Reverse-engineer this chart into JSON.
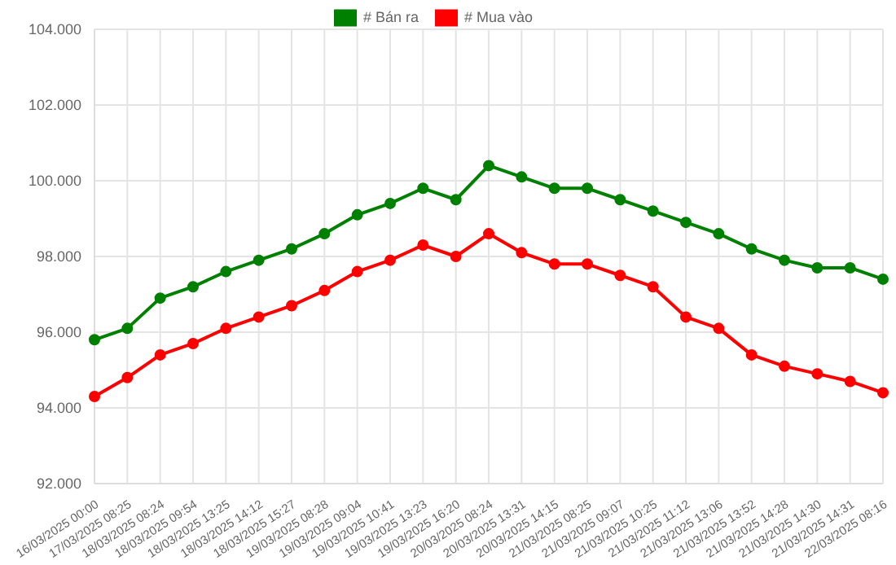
{
  "chart_data": {
    "type": "line",
    "categories": [
      "16/03/2025 00:00",
      "17/03/2025 08:25",
      "18/03/2025 08:24",
      "18/03/2025 09:54",
      "18/03/2025 13:25",
      "18/03/2025 14:12",
      "18/03/2025 15:27",
      "19/03/2025 08:28",
      "19/03/2025 09:04",
      "19/03/2025 10:41",
      "19/03/2025 13:23",
      "19/03/2025 16:20",
      "20/03/2025 08:24",
      "20/03/2025 13:31",
      "20/03/2025 14:15",
      "21/03/2025 08:25",
      "21/03/2025 09:07",
      "21/03/2025 10:25",
      "21/03/2025 11:12",
      "21/03/2025 13:06",
      "21/03/2025 13:52",
      "21/03/2025 14:28",
      "21/03/2025 14:30",
      "21/03/2025 14:31",
      "22/03/2025 08:16"
    ],
    "series": [
      {
        "name": "# Bán ra",
        "color": "#008000",
        "values": [
          95.8,
          96.1,
          96.9,
          97.2,
          97.6,
          97.9,
          98.2,
          98.6,
          99.1,
          99.4,
          99.8,
          99.5,
          100.4,
          100.1,
          99.8,
          99.8,
          99.5,
          99.2,
          98.9,
          98.6,
          98.2,
          97.9,
          97.7,
          97.7,
          97.4
        ]
      },
      {
        "name": "# Mua vào",
        "color": "#ff0000",
        "values": [
          94.3,
          94.8,
          95.4,
          95.7,
          96.1,
          96.4,
          96.7,
          97.1,
          97.6,
          97.9,
          98.3,
          98.0,
          98.6,
          98.1,
          97.8,
          97.8,
          97.5,
          97.2,
          96.4,
          96.1,
          95.4,
          95.1,
          94.9,
          94.7,
          94.4
        ]
      }
    ],
    "ylim": [
      92,
      104
    ],
    "yticks": [
      {
        "value": 92,
        "label": "92.000"
      },
      {
        "value": 94,
        "label": "94.000"
      },
      {
        "value": 96,
        "label": "96.000"
      },
      {
        "value": 98,
        "label": "98.000"
      },
      {
        "value": 100,
        "label": "100.000"
      },
      {
        "value": 102,
        "label": "102.000"
      },
      {
        "value": 104,
        "label": "104.000"
      }
    ],
    "grid": true,
    "legend": "top",
    "marker": "circle",
    "line_style": "solid"
  }
}
